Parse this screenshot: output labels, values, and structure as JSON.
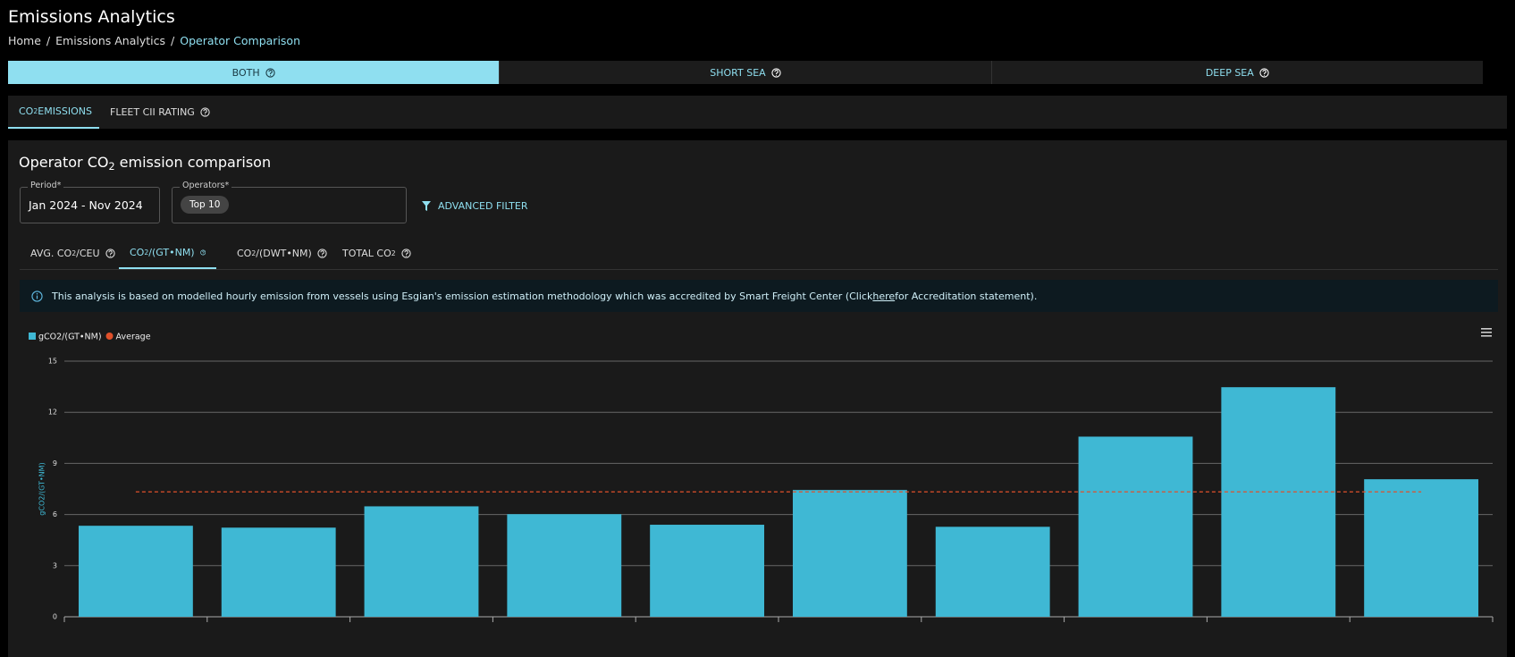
{
  "header": {
    "title": "Emissions Analytics",
    "breadcrumb": [
      "Home",
      "Emissions Analytics",
      "Operator Comparison"
    ],
    "breadcrumb_separator": "/"
  },
  "segments": [
    "BOTH",
    "SHORT SEA",
    "DEEP SEA"
  ],
  "tabs": [
    {
      "main": "CO",
      "sub": "2",
      "after": " EMISSIONS"
    },
    {
      "main": "FLEET CII RATING"
    }
  ],
  "card": {
    "title": {
      "main": "Operator CO",
      "sub": "2",
      "after": " emission comparison"
    },
    "period": {
      "label": "Period*",
      "value": "Jan 2024 - Nov 2024"
    },
    "operators": {
      "label": "Operators*",
      "chip": "Top 10"
    },
    "advanced_filter": "ADVANCED FILTER",
    "metric_tabs": [
      {
        "main": "AVG. CO",
        "sub": "2",
        "after": "/CEU"
      },
      {
        "main": "CO",
        "sub": "2",
        "after": "/(GT•NM)"
      },
      {
        "main": "CO",
        "sub": "2",
        "after": "/(DWT•NM)"
      },
      {
        "main": "TOTAL CO",
        "sub": "2",
        "after": ""
      }
    ],
    "info": {
      "before": "This analysis is based on modelled hourly emission from vessels using Esgian's emission estimation methodology which was accredited by Smart Freight Center (Click ",
      "link": "here",
      "after": " for Accreditation statement)."
    }
  },
  "chart_data": {
    "type": "bar",
    "y_label": "gCO2/(GT•NM)",
    "categories": [
      null,
      null,
      null,
      null,
      null,
      null,
      null,
      null,
      null,
      null
    ],
    "series": [
      {
        "name": "gCO2/(GT•NM)",
        "color": "#3fb8d4",
        "values": [
          5.34,
          5.23,
          6.48,
          6.02,
          5.4,
          7.44,
          5.28,
          10.57,
          13.47,
          8.07
        ]
      }
    ],
    "reference_line": {
      "name": "Average",
      "color": "#e0502a",
      "value": 7.33
    },
    "ylim": [
      0,
      15
    ],
    "yticks": [
      0,
      3,
      6,
      9,
      12,
      15
    ],
    "grid": true
  }
}
